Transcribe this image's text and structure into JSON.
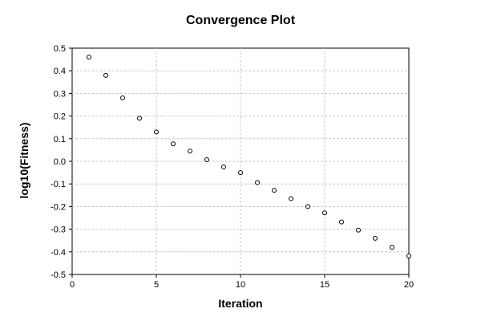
{
  "chart_data": {
    "type": "scatter",
    "title": "Convergence Plot",
    "xlabel": "Iteration",
    "ylabel": "log10(Fitness)",
    "xlim": [
      0,
      20
    ],
    "ylim": [
      -0.5,
      0.5
    ],
    "xticks": [
      0,
      5,
      10,
      15,
      20
    ],
    "yticks": [
      -0.5,
      -0.4,
      -0.3,
      -0.2,
      -0.1,
      0.0,
      0.1,
      0.2,
      0.3,
      0.4,
      0.5
    ],
    "xtick_labels": [
      "0",
      "5",
      "10",
      "15",
      "20"
    ],
    "ytick_labels": [
      "-0.5",
      "-0.4",
      "-0.3",
      "-0.2",
      "-0.1",
      "0.0",
      "0.1",
      "0.2",
      "0.3",
      "0.4",
      "0.5"
    ],
    "grid": true,
    "marker": "open-circle",
    "series": [
      {
        "x": [
          1,
          2,
          3,
          4,
          5,
          6,
          7,
          8,
          9,
          10,
          11,
          12,
          13,
          14,
          15,
          16,
          17,
          18,
          19,
          20
        ],
        "y": [
          0.46,
          0.38,
          0.28,
          0.19,
          0.13,
          0.077,
          0.045,
          0.007,
          -0.025,
          -0.05,
          -0.094,
          -0.128,
          -0.165,
          -0.2,
          -0.228,
          -0.268,
          -0.304,
          -0.34,
          -0.38,
          -0.418
        ]
      }
    ]
  }
}
